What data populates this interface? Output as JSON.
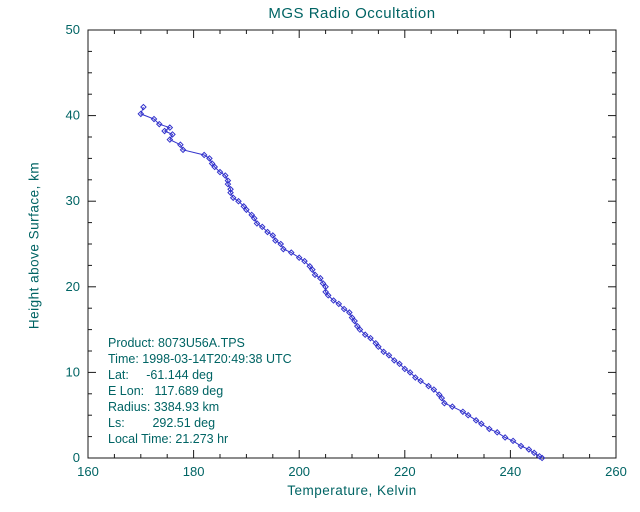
{
  "chart_data": {
    "type": "line",
    "title": "MGS Radio Occultation",
    "xlabel": "Temperature, Kelvin",
    "ylabel": "Height above Surface, km",
    "xlim": [
      160,
      260
    ],
    "ylim": [
      0,
      50
    ],
    "x_ticks": [
      160,
      180,
      200,
      220,
      240,
      260
    ],
    "y_ticks": [
      0,
      10,
      20,
      30,
      40,
      50
    ],
    "x_minor_step": 5,
    "y_minor_step": 2.5,
    "grid": false,
    "legend": "none",
    "line_color": "#3333cc",
    "axis_color": "#1a1a1a",
    "text_color": "#006464",
    "series": [
      {
        "name": "temperature-profile",
        "marker": "diamond",
        "points": [
          [
            170.5,
            41.0
          ],
          [
            170.0,
            40.2
          ],
          [
            172.5,
            39.6
          ],
          [
            173.5,
            39.0
          ],
          [
            175.5,
            38.6
          ],
          [
            174.5,
            38.2
          ],
          [
            176.0,
            37.8
          ],
          [
            175.5,
            37.2
          ],
          [
            177.5,
            36.6
          ],
          [
            178.0,
            36.0
          ],
          [
            182.0,
            35.4
          ],
          [
            183.0,
            35.0
          ],
          [
            183.5,
            34.4
          ],
          [
            184.0,
            34.0
          ],
          [
            185.0,
            33.4
          ],
          [
            186.0,
            33.0
          ],
          [
            186.5,
            32.4
          ],
          [
            186.5,
            32.0
          ],
          [
            187.0,
            31.4
          ],
          [
            187.0,
            31.0
          ],
          [
            187.5,
            30.4
          ],
          [
            188.5,
            30.0
          ],
          [
            189.5,
            29.4
          ],
          [
            190.0,
            29.0
          ],
          [
            191.0,
            28.4
          ],
          [
            191.5,
            28.0
          ],
          [
            192.0,
            27.4
          ],
          [
            193.0,
            27.0
          ],
          [
            194.0,
            26.4
          ],
          [
            195.0,
            26.0
          ],
          [
            195.5,
            25.4
          ],
          [
            196.5,
            25.0
          ],
          [
            197.0,
            24.4
          ],
          [
            198.5,
            24.0
          ],
          [
            200.0,
            23.4
          ],
          [
            201.0,
            23.0
          ],
          [
            202.0,
            22.4
          ],
          [
            202.5,
            22.0
          ],
          [
            203.0,
            21.4
          ],
          [
            204.0,
            21.0
          ],
          [
            204.5,
            20.4
          ],
          [
            205.0,
            20.0
          ],
          [
            205.0,
            19.4
          ],
          [
            205.5,
            19.0
          ],
          [
            206.5,
            18.4
          ],
          [
            207.5,
            18.0
          ],
          [
            208.5,
            17.4
          ],
          [
            209.5,
            17.0
          ],
          [
            210.0,
            16.4
          ],
          [
            210.5,
            16.0
          ],
          [
            211.0,
            15.4
          ],
          [
            211.5,
            15.0
          ],
          [
            212.5,
            14.4
          ],
          [
            213.5,
            14.0
          ],
          [
            214.5,
            13.4
          ],
          [
            215.0,
            13.0
          ],
          [
            216.0,
            12.4
          ],
          [
            217.0,
            12.0
          ],
          [
            218.0,
            11.4
          ],
          [
            219.0,
            11.0
          ],
          [
            220.0,
            10.4
          ],
          [
            221.0,
            10.0
          ],
          [
            222.0,
            9.4
          ],
          [
            223.0,
            9.0
          ],
          [
            224.5,
            8.4
          ],
          [
            225.5,
            8.0
          ],
          [
            226.5,
            7.4
          ],
          [
            227.0,
            7.0
          ],
          [
            227.5,
            6.4
          ],
          [
            229.0,
            6.0
          ],
          [
            231.0,
            5.4
          ],
          [
            232.0,
            5.0
          ],
          [
            233.5,
            4.4
          ],
          [
            234.5,
            4.0
          ],
          [
            236.0,
            3.4
          ],
          [
            237.5,
            3.0
          ],
          [
            239.0,
            2.4
          ],
          [
            240.5,
            2.0
          ],
          [
            242.0,
            1.4
          ],
          [
            243.5,
            1.0
          ],
          [
            244.5,
            0.6
          ],
          [
            245.5,
            0.2
          ],
          [
            246.0,
            0.0
          ]
        ]
      }
    ],
    "annotation": {
      "lines": [
        "Product: 8073U56A.TPS",
        "Time: 1998-03-14T20:49:38 UTC",
        "Lat:     -61.144 deg",
        "E Lon:   117.689 deg",
        "Radius: 3384.93 km",
        "Ls:        292.51 deg",
        "Local Time: 21.273 hr"
      ]
    }
  }
}
